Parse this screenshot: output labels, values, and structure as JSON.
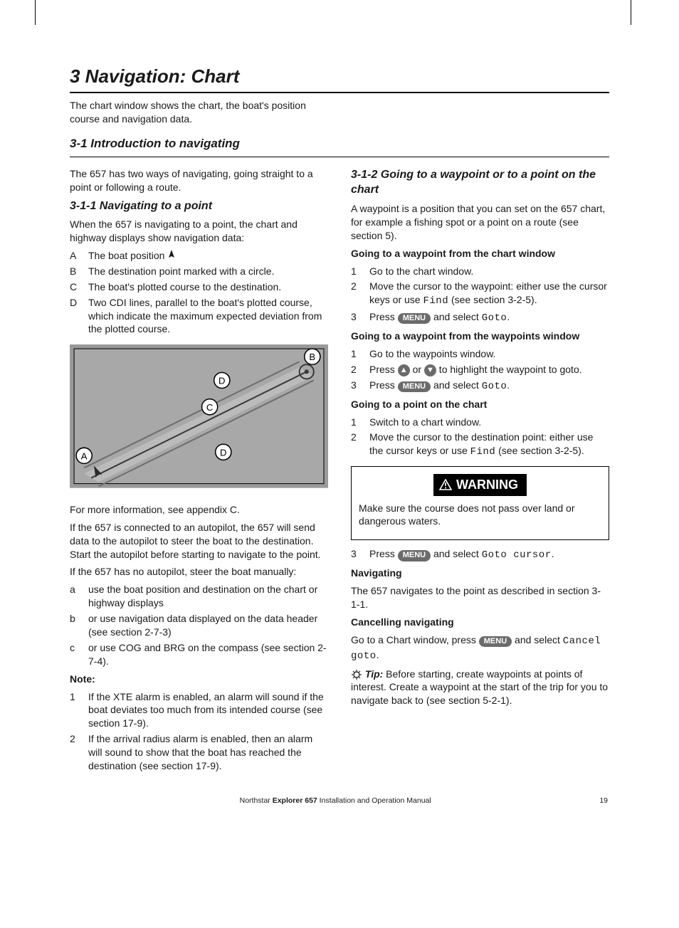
{
  "section_title": "3 Navigation: Chart",
  "intro": "The chart window shows the chart, the boat's position course and navigation data.",
  "h_3_1": "3-1 Introduction to navigating",
  "p_3_1": "The 657 has two ways of navigating, going straight to a point or following a route.",
  "h_3_1_1": "3-1-1 Navigating to a point",
  "p_3_1_1": "When the 657 is navigating to a point, the chart and highway displays show navigation data:",
  "list_ABCD": [
    {
      "m": "A",
      "t": "The boat position "
    },
    {
      "m": "B",
      "t": "The destination point marked with a circle."
    },
    {
      "m": "C",
      "t": "The boat's plotted course to the destination."
    },
    {
      "m": "D",
      "t": "Two CDI lines, parallel to the boat's plotted course, which indicate the maximum expected deviation from the plotted course."
    }
  ],
  "figure": {
    "bg": "#8a8a8a",
    "water": "#a0a0a0",
    "labels": [
      "A",
      "B",
      "C",
      "D",
      "D"
    ]
  },
  "p_more_info": "For more information, see appendix C.",
  "p_autopilot": "If the 657 is connected to an autopilot, the 657 will send data to the autopilot to steer the boat to the destination. Start the autopilot before starting to navigate to the point.",
  "p_no_autopilot": "If the 657 has no autopilot, steer the boat manually:",
  "list_abc": [
    {
      "m": "a",
      "t": "use the boat position and destination on the chart or highway displays"
    },
    {
      "m": "b",
      "t": "or use navigation data displayed on the data header (see section 2-7-3)"
    },
    {
      "m": "c",
      "t": "or use COG and BRG on the compass (see section 2-7-4)."
    }
  ],
  "note_label": "Note:",
  "note_list": [
    {
      "m": "1",
      "t": "If the XTE alarm is enabled, an alarm will sound if the boat deviates too much from its intended course (see section 17-9)."
    },
    {
      "m": "2",
      "t": "If the arrival radius alarm is enabled, then an alarm will sound to show that the boat has reached the destination (see section 17-9)."
    }
  ],
  "h_3_1_2": "3-1-2 Going to a waypoint or to a point on the chart",
  "p_3_1_2": "A waypoint is a position that you can set on the 657 chart, for example a fishing spot or a point on a route (see section 5).",
  "h_chart_window": "Going to a waypoint from the chart window",
  "list_cw": [
    {
      "m": "1",
      "t": "Go to the chart window."
    },
    {
      "m": "2",
      "t_parts": [
        "Move the cursor to the waypoint: either use the cursor keys or use ",
        {
          "mono": "Find"
        },
        " (see section 3-2-5)."
      ]
    },
    {
      "m": "3",
      "t_parts": [
        "Press ",
        {
          "menu": "MENU"
        },
        " and select ",
        {
          "mono": "Goto"
        },
        "."
      ]
    }
  ],
  "h_wp_window": "Going to a waypoint from the waypoints window",
  "list_wp": [
    {
      "m": "1",
      "t": "Go to the waypoints window."
    },
    {
      "m": "2",
      "t_parts": [
        "Press ",
        {
          "arrow": "up"
        },
        " or ",
        {
          "arrow": "down"
        },
        " to highlight the waypoint to goto."
      ]
    },
    {
      "m": "3",
      "t_parts": [
        "Press ",
        {
          "menu": "MENU"
        },
        " and select ",
        {
          "mono": "Goto"
        },
        "."
      ]
    }
  ],
  "h_point_chart": "Going to a point on the chart",
  "list_pc": [
    {
      "m": "1",
      "t": "Switch to a chart window."
    },
    {
      "m": "2",
      "t_parts": [
        "Move the cursor to the destination point: either use the cursor keys or use ",
        {
          "mono": "Find"
        },
        " (see section 3-2-5)."
      ]
    }
  ],
  "warning": {
    "label": "WARNING",
    "text": "Make sure the course does not pass over land or dangerous waters."
  },
  "list_pc_after": [
    {
      "m": "3",
      "t_parts": [
        "Press ",
        {
          "menu": "MENU"
        },
        " and select ",
        {
          "mono": "Goto cursor"
        },
        "."
      ]
    }
  ],
  "h_navigating": "Navigating",
  "p_navigating": "The 657 navigates to the point as described in section 3-1-1.",
  "h_cancel": "Cancelling navigating",
  "p_cancel_parts": [
    "Go to a Chart window, press ",
    {
      "menu": "MENU"
    },
    " and select ",
    {
      "mono": "Cancel goto"
    },
    "."
  ],
  "tip_label": "Tip:",
  "tip_text": " Before starting, create waypoints at points of interest. Create a waypoint at the start of the trip for you to navigate back to (see section 5-2-1).",
  "footer": {
    "prefix": "Northstar ",
    "bold": "Explorer 657",
    "suffix": " Installation and Operation Manual",
    "page": "19"
  },
  "pill_color": "#6b6b6b",
  "menu_text": "MENU"
}
